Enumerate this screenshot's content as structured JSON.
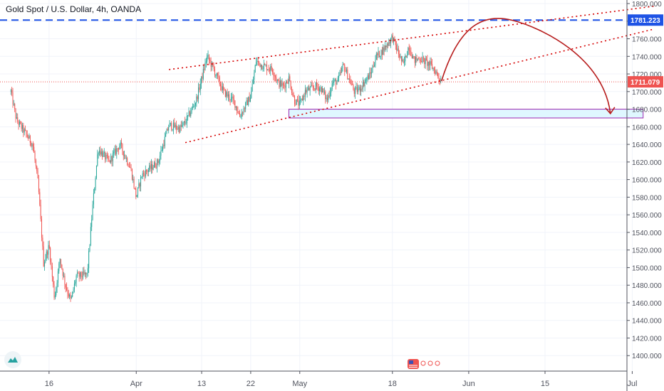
{
  "header": {
    "symbol_title": "Gold Spot / U.S. Dollar, 4h, OANDA"
  },
  "colors": {
    "up": "#26a69a",
    "down": "#ef5350",
    "grid": "#f0f3fa",
    "axis_text": "#50535e",
    "current_price_bg": "#ef5350",
    "resistance_line": "#1e53e5",
    "trend_lines": "#d50000",
    "forecast_arrow": "#b71c1c",
    "zone_fill": "#dff7ff",
    "zone_border": "#9c27b0"
  },
  "icons": {
    "logo": "tradingview-logo-icon",
    "events": "us-flag-event-icon"
  },
  "chart_data": {
    "type": "candlestick",
    "title": "Gold Spot / U.S. Dollar, 4h, OANDA",
    "ylim": [
      1380,
      1800
    ],
    "y_ticks": [
      1400,
      1420,
      1440,
      1460,
      1480,
      1500,
      1520,
      1540,
      1560,
      1580,
      1600,
      1620,
      1640,
      1660,
      1680,
      1700,
      1720,
      1740,
      1760,
      1780,
      1800
    ],
    "y_tick_labels": [
      "1400.000",
      "1420.000",
      "1440.000",
      "1460.000",
      "1480.000",
      "1500.000",
      "1520.000",
      "1540.000",
      "1560.000",
      "1580.000",
      "1600.000",
      "1620.000",
      "1640.000",
      "1660.000",
      "1680.000",
      "1700.000",
      "1720.000",
      "1740.000",
      "1760.000",
      "1780.000",
      "1800.000"
    ],
    "x_labels": [
      "16",
      "Apr",
      "13",
      "22",
      "May",
      "18",
      "Jun",
      "15",
      "Jul"
    ],
    "grid": true,
    "current_price": {
      "value": 1711.079,
      "label": "1711.079"
    },
    "resistance_level": {
      "value": 1781.223,
      "label": "1781.223"
    },
    "support_zone": {
      "low": 1670,
      "high": 1680,
      "from": "Apr 29",
      "to": "Jul 3"
    },
    "trend_channel": {
      "upper": [
        {
          "date": "Apr 7",
          "price": 1725
        },
        {
          "date": "Jul 5",
          "price": 1797
        }
      ],
      "lower": [
        {
          "date": "Apr 10",
          "price": 1642
        },
        {
          "date": "Jul 5",
          "price": 1771
        }
      ]
    },
    "forecast_arrow": {
      "start": {
        "date": "May 27",
        "price": 1712
      },
      "peak": {
        "date": "Jun 9",
        "price": 1781
      },
      "end": {
        "date": "Jun 27",
        "price": 1675
      }
    },
    "price_path": [
      {
        "date": "Mar 9",
        "price": 1700
      },
      {
        "date": "Mar 10",
        "price": 1668
      },
      {
        "date": "Mar 13",
        "price": 1640
      },
      {
        "date": "Mar 14",
        "price": 1595
      },
      {
        "date": "Mar 15",
        "price": 1505
      },
      {
        "date": "Mar 16",
        "price": 1525
      },
      {
        "date": "Mar 17",
        "price": 1465
      },
      {
        "date": "Mar 18",
        "price": 1510
      },
      {
        "date": "Mar 19",
        "price": 1480
      },
      {
        "date": "Mar 20",
        "price": 1462
      },
      {
        "date": "Mar 21",
        "price": 1490
      },
      {
        "date": "Mar 23",
        "price": 1492
      },
      {
        "date": "Mar 24",
        "price": 1570
      },
      {
        "date": "Mar 25",
        "price": 1635
      },
      {
        "date": "Mar 27",
        "price": 1620
      },
      {
        "date": "Mar 29",
        "price": 1640
      },
      {
        "date": "Mar 31",
        "price": 1612
      },
      {
        "date": "Apr 1",
        "price": 1580
      },
      {
        "date": "Apr 2",
        "price": 1605
      },
      {
        "date": "Apr 5",
        "price": 1620
      },
      {
        "date": "Apr 7",
        "price": 1662
      },
      {
        "date": "Apr 9",
        "price": 1658
      },
      {
        "date": "Apr 10",
        "price": 1665
      },
      {
        "date": "Apr 12",
        "price": 1690
      },
      {
        "date": "Apr 14",
        "price": 1740
      },
      {
        "date": "Apr 15",
        "price": 1728
      },
      {
        "date": "Apr 17",
        "price": 1700
      },
      {
        "date": "Apr 19",
        "price": 1688
      },
      {
        "date": "Apr 20",
        "price": 1672
      },
      {
        "date": "Apr 22",
        "price": 1695
      },
      {
        "date": "Apr 23",
        "price": 1735
      },
      {
        "date": "Apr 24",
        "price": 1730
      },
      {
        "date": "Apr 26",
        "price": 1725
      },
      {
        "date": "Apr 27",
        "price": 1710
      },
      {
        "date": "Apr 28",
        "price": 1706
      },
      {
        "date": "Apr 29",
        "price": 1715
      },
      {
        "date": "Apr 30",
        "price": 1690
      },
      {
        "date": "May 1",
        "price": 1685
      },
      {
        "date": "May 2",
        "price": 1700
      },
      {
        "date": "May 4",
        "price": 1706
      },
      {
        "date": "May 5",
        "price": 1703
      },
      {
        "date": "May 6",
        "price": 1690
      },
      {
        "date": "May 7",
        "price": 1710
      },
      {
        "date": "May 8",
        "price": 1712
      },
      {
        "date": "May 9",
        "price": 1730
      },
      {
        "date": "May 11",
        "price": 1700
      },
      {
        "date": "May 12",
        "price": 1703
      },
      {
        "date": "May 13",
        "price": 1712
      },
      {
        "date": "May 14",
        "price": 1720
      },
      {
        "date": "May 15",
        "price": 1740
      },
      {
        "date": "May 16",
        "price": 1745
      },
      {
        "date": "May 18",
        "price": 1762
      },
      {
        "date": "May 19",
        "price": 1745
      },
      {
        "date": "May 20",
        "price": 1730
      },
      {
        "date": "May 21",
        "price": 1752
      },
      {
        "date": "May 22",
        "price": 1735
      },
      {
        "date": "May 23",
        "price": 1738
      },
      {
        "date": "May 25",
        "price": 1730
      },
      {
        "date": "May 26",
        "price": 1722
      },
      {
        "date": "May 27",
        "price": 1711
      }
    ]
  }
}
